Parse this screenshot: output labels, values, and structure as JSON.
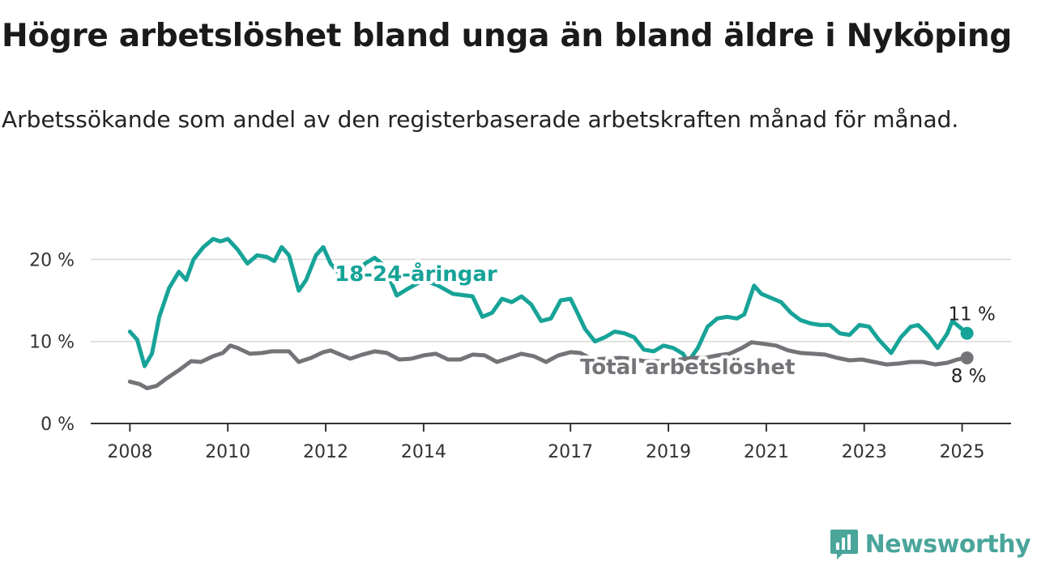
{
  "title": "Högre arbetslöshet bland unga än bland äldre i Nyköping",
  "subtitle": "Arbetssökande som andel av den registerbaserade arbetskraften månad för månad.",
  "brand": {
    "name": "Newsworthy",
    "icon": "newsworthy-logo-icon",
    "color": "#4aa59b"
  },
  "chart_data": {
    "type": "line",
    "y_unit": "%",
    "ylim": [
      0,
      23
    ],
    "y_ticks": [
      {
        "value": 0,
        "label": "0 %"
      },
      {
        "value": 10,
        "label": "10 %"
      },
      {
        "value": 20,
        "label": "20 %"
      }
    ],
    "x_ticks": [
      {
        "value": 2008,
        "label": "2008"
      },
      {
        "value": 2010,
        "label": "2010"
      },
      {
        "value": 2012,
        "label": "2012"
      },
      {
        "value": 2014,
        "label": "2014"
      },
      {
        "value": 2017,
        "label": "2017"
      },
      {
        "value": 2019,
        "label": "2019"
      },
      {
        "value": 2021,
        "label": "2021"
      },
      {
        "value": 2023,
        "label": "2023"
      },
      {
        "value": 2025,
        "label": "2025"
      }
    ],
    "xlim": [
      2007.2,
      2026.0
    ],
    "grid": true,
    "series": [
      {
        "name": "18-24-åringar",
        "color": "#17a398",
        "end_label": "11 %",
        "points": [
          [
            2008.0,
            11.2
          ],
          [
            2008.15,
            10.2
          ],
          [
            2008.3,
            7.0
          ],
          [
            2008.45,
            8.5
          ],
          [
            2008.6,
            13.0
          ],
          [
            2008.8,
            16.5
          ],
          [
            2009.0,
            18.5
          ],
          [
            2009.15,
            17.5
          ],
          [
            2009.3,
            20.0
          ],
          [
            2009.5,
            21.5
          ],
          [
            2009.7,
            22.5
          ],
          [
            2009.85,
            22.2
          ],
          [
            2010.0,
            22.5
          ],
          [
            2010.2,
            21.2
          ],
          [
            2010.4,
            19.5
          ],
          [
            2010.6,
            20.5
          ],
          [
            2010.8,
            20.3
          ],
          [
            2010.95,
            19.8
          ],
          [
            2011.1,
            21.5
          ],
          [
            2011.25,
            20.5
          ],
          [
            2011.45,
            16.2
          ],
          [
            2011.6,
            17.5
          ],
          [
            2011.8,
            20.5
          ],
          [
            2011.95,
            21.5
          ],
          [
            2012.1,
            19.5
          ],
          [
            2012.35,
            17.8
          ],
          [
            2012.6,
            17.5
          ],
          [
            2012.8,
            19.5
          ],
          [
            2013.0,
            20.2
          ],
          [
            2013.2,
            19.2
          ],
          [
            2013.45,
            15.6
          ],
          [
            2013.7,
            16.5
          ],
          [
            2014.0,
            17.5
          ],
          [
            2014.3,
            16.8
          ],
          [
            2014.6,
            15.8
          ],
          [
            2015.0,
            15.5
          ],
          [
            2015.2,
            13.0
          ],
          [
            2015.4,
            13.5
          ],
          [
            2015.6,
            15.2
          ],
          [
            2015.8,
            14.8
          ],
          [
            2016.0,
            15.5
          ],
          [
            2016.2,
            14.5
          ],
          [
            2016.4,
            12.5
          ],
          [
            2016.6,
            12.8
          ],
          [
            2016.8,
            15.0
          ],
          [
            2017.0,
            15.2
          ],
          [
            2017.1,
            14.0
          ],
          [
            2017.3,
            11.5
          ],
          [
            2017.5,
            10.0
          ],
          [
            2017.7,
            10.5
          ],
          [
            2017.9,
            11.2
          ],
          [
            2018.1,
            11.0
          ],
          [
            2018.3,
            10.5
          ],
          [
            2018.5,
            9.0
          ],
          [
            2018.7,
            8.8
          ],
          [
            2018.9,
            9.5
          ],
          [
            2019.1,
            9.2
          ],
          [
            2019.3,
            8.5
          ],
          [
            2019.4,
            7.5
          ],
          [
            2019.6,
            9.2
          ],
          [
            2019.8,
            11.8
          ],
          [
            2020.0,
            12.8
          ],
          [
            2020.2,
            13.0
          ],
          [
            2020.4,
            12.8
          ],
          [
            2020.55,
            13.3
          ],
          [
            2020.75,
            16.8
          ],
          [
            2020.9,
            15.8
          ],
          [
            2021.1,
            15.3
          ],
          [
            2021.3,
            14.8
          ],
          [
            2021.5,
            13.5
          ],
          [
            2021.7,
            12.6
          ],
          [
            2021.9,
            12.2
          ],
          [
            2022.1,
            12.0
          ],
          [
            2022.3,
            12.0
          ],
          [
            2022.5,
            11.0
          ],
          [
            2022.7,
            10.8
          ],
          [
            2022.9,
            12.0
          ],
          [
            2023.1,
            11.8
          ],
          [
            2023.3,
            10.2
          ],
          [
            2023.55,
            8.6
          ],
          [
            2023.75,
            10.5
          ],
          [
            2023.95,
            11.8
          ],
          [
            2024.1,
            12.0
          ],
          [
            2024.3,
            10.8
          ],
          [
            2024.5,
            9.2
          ],
          [
            2024.7,
            11.0
          ],
          [
            2024.8,
            12.5
          ],
          [
            2025.1,
            11.0
          ]
        ]
      },
      {
        "name": "Total arbetslöshet",
        "color": "#747378",
        "end_label": "8 %",
        "points": [
          [
            2008.0,
            5.1
          ],
          [
            2008.2,
            4.8
          ],
          [
            2008.35,
            4.3
          ],
          [
            2008.55,
            4.6
          ],
          [
            2008.75,
            5.5
          ],
          [
            2009.0,
            6.5
          ],
          [
            2009.25,
            7.6
          ],
          [
            2009.45,
            7.5
          ],
          [
            2009.7,
            8.2
          ],
          [
            2009.9,
            8.6
          ],
          [
            2010.05,
            9.5
          ],
          [
            2010.2,
            9.2
          ],
          [
            2010.45,
            8.5
          ],
          [
            2010.7,
            8.6
          ],
          [
            2010.9,
            8.8
          ],
          [
            2011.1,
            8.8
          ],
          [
            2011.25,
            8.8
          ],
          [
            2011.45,
            7.5
          ],
          [
            2011.7,
            8.0
          ],
          [
            2011.95,
            8.7
          ],
          [
            2012.1,
            8.9
          ],
          [
            2012.3,
            8.4
          ],
          [
            2012.5,
            7.9
          ],
          [
            2012.75,
            8.4
          ],
          [
            2013.0,
            8.8
          ],
          [
            2013.25,
            8.6
          ],
          [
            2013.5,
            7.8
          ],
          [
            2013.75,
            7.9
          ],
          [
            2014.0,
            8.3
          ],
          [
            2014.25,
            8.5
          ],
          [
            2014.5,
            7.8
          ],
          [
            2014.75,
            7.8
          ],
          [
            2015.0,
            8.4
          ],
          [
            2015.25,
            8.3
          ],
          [
            2015.5,
            7.5
          ],
          [
            2015.75,
            8.0
          ],
          [
            2016.0,
            8.5
          ],
          [
            2016.25,
            8.2
          ],
          [
            2016.5,
            7.5
          ],
          [
            2016.75,
            8.3
          ],
          [
            2017.0,
            8.7
          ],
          [
            2017.2,
            8.6
          ],
          [
            2017.45,
            7.8
          ],
          [
            2017.7,
            7.9
          ],
          [
            2018.0,
            8.0
          ],
          [
            2018.25,
            7.9
          ],
          [
            2018.5,
            7.6
          ],
          [
            2018.75,
            7.6
          ],
          [
            2019.0,
            7.5
          ],
          [
            2019.25,
            7.8
          ],
          [
            2019.5,
            8.0
          ],
          [
            2019.75,
            8.0
          ],
          [
            2020.0,
            8.3
          ],
          [
            2020.25,
            8.5
          ],
          [
            2020.5,
            9.2
          ],
          [
            2020.7,
            9.9
          ],
          [
            2020.95,
            9.7
          ],
          [
            2021.2,
            9.5
          ],
          [
            2021.45,
            8.9
          ],
          [
            2021.7,
            8.6
          ],
          [
            2021.95,
            8.5
          ],
          [
            2022.2,
            8.4
          ],
          [
            2022.45,
            8.0
          ],
          [
            2022.7,
            7.7
          ],
          [
            2022.95,
            7.8
          ],
          [
            2023.2,
            7.5
          ],
          [
            2023.45,
            7.2
          ],
          [
            2023.7,
            7.3
          ],
          [
            2023.95,
            7.5
          ],
          [
            2024.2,
            7.5
          ],
          [
            2024.45,
            7.2
          ],
          [
            2024.7,
            7.4
          ],
          [
            2024.9,
            7.8
          ],
          [
            2025.1,
            8.0
          ]
        ]
      }
    ]
  }
}
